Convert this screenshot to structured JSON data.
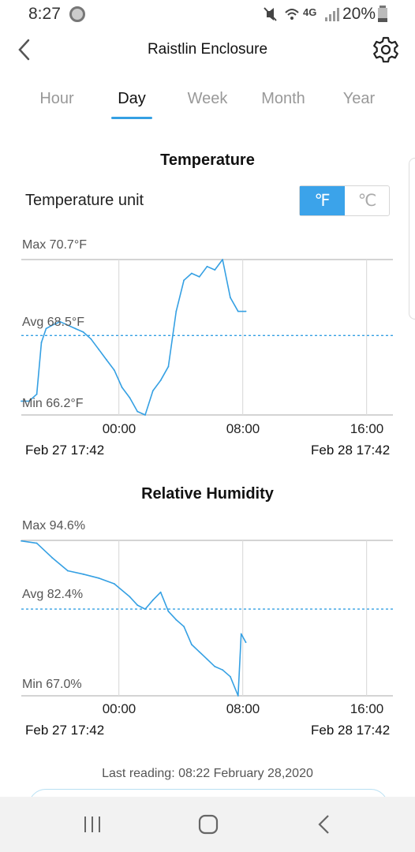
{
  "status": {
    "time": "8:27",
    "battery": "20%",
    "network": "4G"
  },
  "header": {
    "title": "Raistlin Enclosure",
    "back_icon": "chevron-left-icon",
    "settings_icon": "gear-icon"
  },
  "tabs": [
    {
      "label": "Hour",
      "active": false
    },
    {
      "label": "Day",
      "active": true
    },
    {
      "label": "Week",
      "active": false
    },
    {
      "label": "Month",
      "active": false
    },
    {
      "label": "Year",
      "active": false
    }
  ],
  "temperature": {
    "title": "Temperature",
    "unit_label": "Temperature unit",
    "unit_f": "℉",
    "unit_c": "℃",
    "selected_unit": "F",
    "max_label": "Max 70.7°F",
    "avg_label": "Avg 68.5°F",
    "min_label": "Min 66.2°F",
    "ticks": [
      "00:00",
      "08:00",
      "16:00"
    ],
    "start_date": "Feb 27 17:42",
    "end_date": "Feb 28 17:42"
  },
  "humidity": {
    "title": "Relative Humidity",
    "max_label": "Max 94.6%",
    "avg_label": "Avg 82.4%",
    "min_label": "Min 67.0%",
    "ticks": [
      "00:00",
      "08:00",
      "16:00"
    ],
    "start_date": "Feb 27 17:42",
    "end_date": "Feb 28 17:42"
  },
  "last_reading": "Last reading: 08:22 February 28,2020",
  "accent_color": "#35a0e3",
  "chart_data": [
    {
      "type": "line",
      "title": "Temperature",
      "ylim": [
        66.2,
        70.7
      ],
      "avg": 68.5,
      "x_hours": [
        0,
        0.5,
        1,
        1.3,
        1.6,
        2,
        2.5,
        3,
        3.5,
        4,
        4.5,
        5,
        5.5,
        6,
        6.5,
        7,
        7.5,
        8,
        8.5,
        9,
        9.5,
        10,
        10.5,
        11,
        11.5,
        12,
        12.5,
        13,
        13.5,
        14,
        14.5
      ],
      "series": [
        {
          "values": [
            66.6,
            66.6,
            66.8,
            68.3,
            68.7,
            68.8,
            68.9,
            68.8,
            68.7,
            68.6,
            68.4,
            68.1,
            67.8,
            67.5,
            67.0,
            66.7,
            66.3,
            66.2,
            66.9,
            67.2,
            67.6,
            69.2,
            70.1,
            70.3,
            70.2,
            70.5,
            70.4,
            70.7,
            69.6,
            69.2,
            69.2
          ]
        }
      ],
      "x_tick_labels": [
        "00:00",
        "08:00",
        "16:00"
      ],
      "x_start": "Feb 27 17:42",
      "x_end": "Feb 28 17:42"
    },
    {
      "type": "line",
      "title": "Relative Humidity",
      "ylim": [
        67.0,
        94.6
      ],
      "avg": 82.4,
      "x_hours": [
        0,
        1,
        2,
        3,
        4,
        5,
        6,
        7,
        7.5,
        8,
        8.5,
        9,
        9.5,
        10,
        10.5,
        11,
        11.5,
        12,
        12.5,
        13,
        13.5,
        14,
        14.2,
        14.5
      ],
      "series": [
        {
          "values": [
            94.5,
            94.1,
            91.5,
            89.2,
            88.6,
            87.9,
            86.9,
            84.6,
            83.1,
            82.4,
            84.0,
            85.4,
            82.0,
            80.5,
            79.3,
            76.1,
            74.8,
            73.5,
            72.2,
            71.6,
            70.4,
            67.0,
            78.0,
            76.5
          ]
        }
      ],
      "x_tick_labels": [
        "00:00",
        "08:00",
        "16:00"
      ],
      "x_start": "Feb 27 17:42",
      "x_end": "Feb 28 17:42"
    }
  ]
}
